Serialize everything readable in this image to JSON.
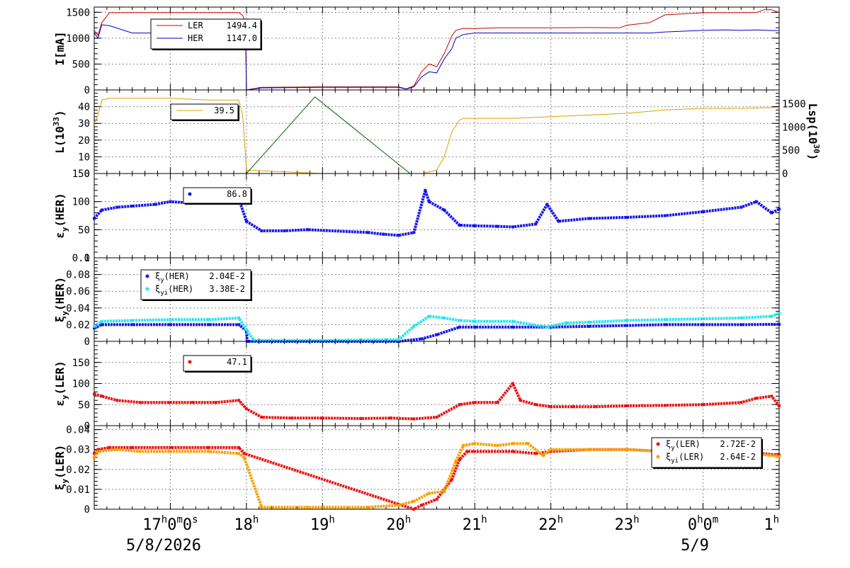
{
  "colors": {
    "ler": "#d40000",
    "her": "#0000cc",
    "lum": "#dda000",
    "lsp": "#006600",
    "blue_pts": "#1515ee",
    "cyan_pts": "#22e8ee",
    "red_pts": "#ee1111",
    "orange_pts": "#f5a000"
  },
  "x_axis": {
    "range_hours": [
      16.0,
      25.0
    ],
    "ticks": [
      {
        "h": 17.0,
        "label": "17",
        "suffix_parts": [
          "h",
          "0",
          "m",
          "0",
          "s"
        ]
      },
      {
        "h": 18.0,
        "label": "18"
      },
      {
        "h": 19.0,
        "label": "19"
      },
      {
        "h": 20.0,
        "label": "20"
      },
      {
        "h": 21.0,
        "label": "21"
      },
      {
        "h": 22.0,
        "label": "22"
      },
      {
        "h": 23.0,
        "label": "23"
      },
      {
        "h": 24.0,
        "label": "0",
        "suffix_parts": [
          "h",
          "0",
          "m"
        ]
      },
      {
        "h": 25.0,
        "label": "1"
      }
    ],
    "date_left": "5/8/2026",
    "date_right": "5/9"
  },
  "chart_data": [
    {
      "type": "line",
      "id": "current",
      "ylabel": "I[mA]",
      "ylim": [
        0,
        1600
      ],
      "yticks": [
        0,
        500,
        1000,
        1500
      ],
      "grid": true,
      "legend": {
        "placement": "top-left",
        "entries": [
          {
            "name": "LER",
            "value": "1494.4",
            "color": "#d40000"
          },
          {
            "name": "HER",
            "value": "1147.0",
            "color": "#0000cc"
          }
        ]
      },
      "series": [
        {
          "name": "LER",
          "x": [
            16.0,
            16.05,
            16.1,
            16.2,
            16.5,
            17.0,
            17.5,
            17.9,
            17.95,
            17.99,
            18.0,
            18.2,
            19.0,
            19.5,
            20.0,
            20.1,
            20.2,
            20.3,
            20.4,
            20.5,
            20.6,
            20.7,
            20.75,
            20.85,
            20.9,
            21.0,
            21.2,
            21.3,
            21.5,
            22.0,
            22.5,
            22.9,
            23.0,
            23.3,
            23.5,
            24.0,
            24.5,
            24.7,
            24.8,
            24.9,
            25.0
          ],
          "y": [
            1150,
            1050,
            1300,
            1490,
            1495,
            1495,
            1495,
            1495,
            1440,
            1300,
            0,
            50,
            60,
            60,
            60,
            20,
            80,
            350,
            500,
            450,
            700,
            1050,
            1150,
            1190,
            1185,
            1185,
            1195,
            1200,
            1200,
            1200,
            1205,
            1200,
            1250,
            1300,
            1450,
            1490,
            1495,
            1495,
            1550,
            1550,
            1494.4
          ]
        },
        {
          "name": "HER",
          "x": [
            16.0,
            16.05,
            16.1,
            16.2,
            16.5,
            17.0,
            17.5,
            17.9,
            17.95,
            17.99,
            18.0,
            18.2,
            19.0,
            19.5,
            20.0,
            20.1,
            20.2,
            20.3,
            20.4,
            20.5,
            20.6,
            20.7,
            20.75,
            20.85,
            20.9,
            21.0,
            21.3,
            21.5,
            22.0,
            22.5,
            23.0,
            23.3,
            23.5,
            24.0,
            24.3,
            24.5,
            24.7,
            24.9,
            25.0
          ],
          "y": [
            1100,
            1000,
            1260,
            1240,
            1100,
            1100,
            1100,
            1100,
            1050,
            950,
            0,
            40,
            50,
            50,
            50,
            15,
            60,
            250,
            350,
            330,
            600,
            800,
            1000,
            1070,
            1080,
            1100,
            1100,
            1100,
            1100,
            1100,
            1100,
            1100,
            1120,
            1150,
            1160,
            1150,
            1160,
            1147,
            1147.0
          ]
        }
      ]
    },
    {
      "type": "line",
      "id": "luminosity",
      "ylabel": "L(10^33)",
      "ylabel_base": "L(10",
      "ylabel_exp": "33",
      "ylim": [
        0,
        50
      ],
      "yticks": [
        0,
        10,
        20,
        30,
        40
      ],
      "y2label_base": "Lsp(10",
      "y2label_exp": "30",
      "y2lim": [
        0,
        1800
      ],
      "y2ticks": [
        0,
        500,
        1000,
        1500
      ],
      "grid": true,
      "legend": {
        "placement": "top-left",
        "entries": [
          {
            "name": "",
            "value": "39.5",
            "color": "#dda000"
          }
        ]
      },
      "series": [
        {
          "name": "L",
          "x": [
            16.0,
            16.05,
            16.1,
            16.2,
            16.5,
            17.0,
            17.5,
            17.9,
            17.95,
            17.99,
            18.0,
            18.5,
            19.0,
            19.5,
            20.0,
            20.3,
            20.5,
            20.6,
            20.7,
            20.8,
            20.85,
            21.0,
            21.5,
            22.0,
            22.5,
            23.0,
            23.5,
            24.0,
            24.5,
            25.0
          ],
          "y": [
            30,
            35,
            44,
            45,
            45,
            45,
            44,
            44,
            35,
            10,
            2,
            1,
            0,
            0,
            0,
            0,
            2,
            10,
            25,
            32,
            33,
            33,
            33,
            34,
            35,
            36,
            38,
            39,
            39,
            39.5
          ]
        },
        {
          "name": "Lsp",
          "axis": "y2",
          "x": [
            18.0,
            18.9,
            20.15,
            20.6,
            25.0
          ],
          "y": [
            0,
            1650,
            0,
            0,
            0
          ]
        }
      ]
    },
    {
      "type": "scatter",
      "id": "emit_her",
      "ylabel": "εy(HER)",
      "ylabel_main": "ε",
      "ylabel_sub": "y",
      "ylabel_tail": "(HER)",
      "ylim": [
        0,
        150
      ],
      "yticks": [
        0,
        50,
        100,
        150
      ],
      "grid": true,
      "legend": {
        "placement": "top-left",
        "entries": [
          {
            "name": "",
            "value": "86.8",
            "color": "#1515ee"
          }
        ]
      },
      "series": [
        {
          "name": "εy(HER)",
          "x": [
            16.0,
            16.1,
            16.3,
            16.5,
            16.8,
            17.0,
            17.3,
            17.6,
            17.9,
            18.0,
            18.2,
            18.5,
            18.8,
            19.6,
            19.8,
            20.0,
            20.2,
            20.35,
            20.4,
            20.6,
            20.8,
            21.0,
            21.3,
            21.5,
            21.8,
            21.95,
            22.1,
            22.5,
            23.0,
            23.5,
            24.0,
            24.5,
            24.7,
            24.9,
            25.0
          ],
          "y": [
            70,
            85,
            90,
            92,
            95,
            100,
            97,
            100,
            105,
            65,
            48,
            48,
            50,
            45,
            42,
            40,
            45,
            120,
            100,
            85,
            58,
            57,
            56,
            55,
            60,
            95,
            65,
            70,
            72,
            75,
            82,
            90,
            100,
            80,
            86.8
          ]
        }
      ]
    },
    {
      "type": "scatter",
      "id": "xi_her",
      "ylabel": "ξy(HER)",
      "ylabel_main": "ξ",
      "ylabel_sub": "y",
      "ylabel_tail": "(HER)",
      "ylim": [
        0,
        0.1
      ],
      "yticks": [
        0,
        0.02,
        0.04,
        0.06,
        0.08,
        0.1
      ],
      "ytick_labels": [
        "0",
        "0.02",
        "0.04",
        "0.06",
        "0.08",
        "0.1"
      ],
      "grid": true,
      "legend": {
        "placement": "top-left",
        "entries": [
          {
            "name_main": "ξ",
            "name_sub": "y",
            "name_tail": "(HER)",
            "value": "2.04E-2",
            "color": "#1515ee"
          },
          {
            "name_main": "ξ",
            "name_sub": "yi",
            "name_tail": "(HER)",
            "value": "3.38E-2",
            "color": "#22e8ee"
          }
        ]
      },
      "series": [
        {
          "name": "ξy(HER)",
          "x": [
            16.0,
            16.1,
            16.5,
            17.0,
            17.5,
            17.9,
            18.0,
            18.01,
            20.0,
            20.3,
            20.5,
            20.8,
            21.0,
            21.5,
            22.0,
            22.5,
            23.0,
            23.5,
            24.0,
            24.5,
            25.0
          ],
          "y": [
            0.016,
            0.02,
            0.02,
            0.02,
            0.02,
            0.02,
            0.013,
            0.0,
            0.0,
            0.003,
            0.008,
            0.017,
            0.017,
            0.017,
            0.017,
            0.018,
            0.019,
            0.02,
            0.02,
            0.02,
            0.0204
          ]
        },
        {
          "name": "ξyi(HER)",
          "x": [
            16.0,
            16.1,
            16.5,
            17.0,
            17.5,
            17.9,
            18.0,
            18.1,
            19.0,
            20.0,
            20.2,
            20.4,
            20.6,
            20.8,
            21.0,
            21.5,
            21.95,
            22.2,
            22.5,
            23.0,
            23.5,
            24.0,
            24.5,
            24.9,
            25.0
          ],
          "y": [
            0.018,
            0.024,
            0.025,
            0.026,
            0.026,
            0.028,
            0.014,
            0.001,
            0.001,
            0.002,
            0.018,
            0.03,
            0.028,
            0.025,
            0.024,
            0.024,
            0.017,
            0.022,
            0.023,
            0.025,
            0.026,
            0.027,
            0.028,
            0.03,
            0.0338
          ]
        }
      ]
    },
    {
      "type": "scatter",
      "id": "emit_ler",
      "ylabel": "εy(LER)",
      "ylabel_main": "ε",
      "ylabel_sub": "y",
      "ylabel_tail": "(LER)",
      "ylim": [
        0,
        200
      ],
      "yticks": [
        0,
        50,
        100,
        150
      ],
      "grid": true,
      "legend": {
        "placement": "top-left",
        "entries": [
          {
            "name": "",
            "value": "47.1",
            "color": "#ee1111"
          }
        ]
      },
      "series": [
        {
          "name": "εy(LER)",
          "x": [
            16.0,
            16.1,
            16.3,
            16.6,
            17.0,
            17.3,
            17.6,
            17.9,
            18.0,
            18.2,
            18.6,
            19.0,
            19.5,
            19.9,
            20.2,
            20.5,
            20.8,
            21.0,
            21.3,
            21.5,
            21.6,
            21.8,
            22.0,
            22.3,
            22.6,
            23.0,
            23.5,
            24.0,
            24.5,
            24.7,
            24.9,
            25.0
          ],
          "y": [
            75,
            70,
            60,
            55,
            55,
            55,
            55,
            60,
            40,
            20,
            18,
            18,
            17,
            18,
            16,
            20,
            50,
            55,
            55,
            100,
            60,
            50,
            45,
            45,
            45,
            47,
            48,
            50,
            55,
            65,
            70,
            47.1
          ]
        }
      ]
    },
    {
      "type": "scatter",
      "id": "xi_ler",
      "ylabel": "ξy(LER)",
      "ylabel_main": "ξ",
      "ylabel_sub": "y",
      "ylabel_tail": "(LER)",
      "ylim": [
        0,
        0.042
      ],
      "yticks": [
        0,
        0.01,
        0.02,
        0.03,
        0.04
      ],
      "ytick_labels": [
        "0",
        "0.01",
        "0.02",
        "0.03",
        "0.04"
      ],
      "grid": true,
      "legend": {
        "placement": "top-right",
        "entries": [
          {
            "name_main": "ξ",
            "name_sub": "y",
            "name_tail": "(LER)",
            "value": "2.72E-2",
            "color": "#ee1111"
          },
          {
            "name_main": "ξ",
            "name_sub": "yi",
            "name_tail": "(LER)",
            "value": "2.64E-2",
            "color": "#f5a000"
          }
        ]
      },
      "series": [
        {
          "name": "ξy(LER)",
          "x": [
            16.0,
            16.05,
            16.2,
            16.5,
            17.0,
            17.5,
            17.9,
            17.97,
            20.2,
            20.3,
            20.5,
            20.7,
            20.8,
            20.9,
            21.0,
            21.5,
            21.8,
            22.0,
            22.5,
            23.0,
            23.5,
            24.0,
            24.5,
            25.0
          ],
          "y": [
            0.028,
            0.03,
            0.031,
            0.031,
            0.031,
            0.031,
            0.031,
            0.028,
            0.0,
            0.002,
            0.005,
            0.015,
            0.025,
            0.029,
            0.029,
            0.029,
            0.028,
            0.029,
            0.03,
            0.03,
            0.029,
            0.029,
            0.029,
            0.0272
          ]
        },
        {
          "name": "ξyi(LER)",
          "x": [
            16.0,
            16.05,
            16.3,
            16.6,
            17.0,
            17.5,
            17.9,
            17.97,
            18.2,
            18.8,
            19.6,
            20.0,
            20.2,
            20.4,
            20.6,
            20.75,
            20.85,
            21.0,
            21.3,
            21.5,
            21.7,
            21.9,
            22.0,
            22.5,
            23.0,
            23.5,
            24.0,
            24.5,
            25.0
          ],
          "y": [
            0.026,
            0.029,
            0.03,
            0.029,
            0.029,
            0.029,
            0.028,
            0.026,
            0.001,
            0.001,
            0.001,
            0.002,
            0.004,
            0.008,
            0.009,
            0.024,
            0.032,
            0.033,
            0.032,
            0.033,
            0.033,
            0.027,
            0.03,
            0.03,
            0.03,
            0.029,
            0.028,
            0.029,
            0.0264
          ]
        }
      ]
    }
  ]
}
